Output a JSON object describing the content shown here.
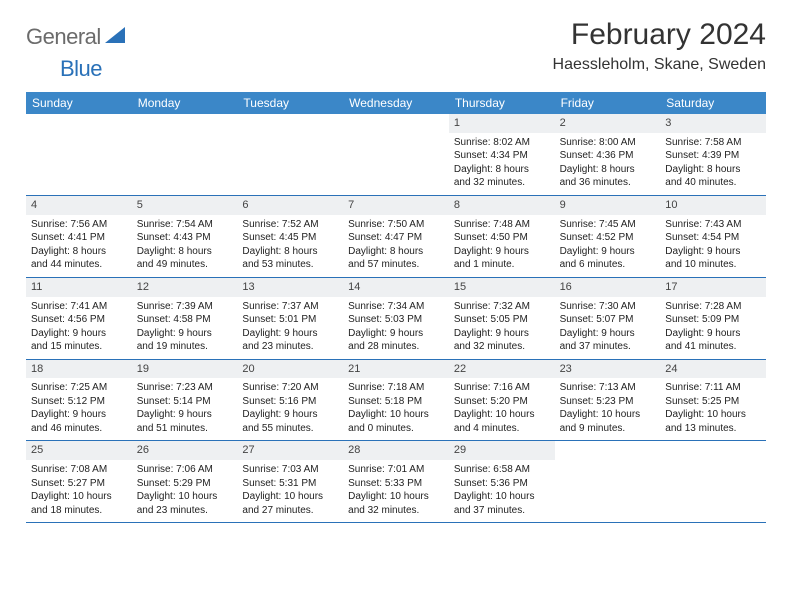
{
  "logo": {
    "general": "General",
    "blue": "Blue"
  },
  "title": "February 2024",
  "location": "Haessleholm, Skane, Sweden",
  "colors": {
    "header_bg": "#3b87c8",
    "accent": "#2a71b8",
    "daynum_bg": "#eef0f2",
    "logo_gray": "#6b6b6b",
    "text": "#222222"
  },
  "day_names": [
    "Sunday",
    "Monday",
    "Tuesday",
    "Wednesday",
    "Thursday",
    "Friday",
    "Saturday"
  ],
  "weeks": [
    [
      null,
      null,
      null,
      null,
      {
        "n": "1",
        "sunrise": "Sunrise: 8:02 AM",
        "sunset": "Sunset: 4:34 PM",
        "day1": "Daylight: 8 hours",
        "day2": "and 32 minutes."
      },
      {
        "n": "2",
        "sunrise": "Sunrise: 8:00 AM",
        "sunset": "Sunset: 4:36 PM",
        "day1": "Daylight: 8 hours",
        "day2": "and 36 minutes."
      },
      {
        "n": "3",
        "sunrise": "Sunrise: 7:58 AM",
        "sunset": "Sunset: 4:39 PM",
        "day1": "Daylight: 8 hours",
        "day2": "and 40 minutes."
      }
    ],
    [
      {
        "n": "4",
        "sunrise": "Sunrise: 7:56 AM",
        "sunset": "Sunset: 4:41 PM",
        "day1": "Daylight: 8 hours",
        "day2": "and 44 minutes."
      },
      {
        "n": "5",
        "sunrise": "Sunrise: 7:54 AM",
        "sunset": "Sunset: 4:43 PM",
        "day1": "Daylight: 8 hours",
        "day2": "and 49 minutes."
      },
      {
        "n": "6",
        "sunrise": "Sunrise: 7:52 AM",
        "sunset": "Sunset: 4:45 PM",
        "day1": "Daylight: 8 hours",
        "day2": "and 53 minutes."
      },
      {
        "n": "7",
        "sunrise": "Sunrise: 7:50 AM",
        "sunset": "Sunset: 4:47 PM",
        "day1": "Daylight: 8 hours",
        "day2": "and 57 minutes."
      },
      {
        "n": "8",
        "sunrise": "Sunrise: 7:48 AM",
        "sunset": "Sunset: 4:50 PM",
        "day1": "Daylight: 9 hours",
        "day2": "and 1 minute."
      },
      {
        "n": "9",
        "sunrise": "Sunrise: 7:45 AM",
        "sunset": "Sunset: 4:52 PM",
        "day1": "Daylight: 9 hours",
        "day2": "and 6 minutes."
      },
      {
        "n": "10",
        "sunrise": "Sunrise: 7:43 AM",
        "sunset": "Sunset: 4:54 PM",
        "day1": "Daylight: 9 hours",
        "day2": "and 10 minutes."
      }
    ],
    [
      {
        "n": "11",
        "sunrise": "Sunrise: 7:41 AM",
        "sunset": "Sunset: 4:56 PM",
        "day1": "Daylight: 9 hours",
        "day2": "and 15 minutes."
      },
      {
        "n": "12",
        "sunrise": "Sunrise: 7:39 AM",
        "sunset": "Sunset: 4:58 PM",
        "day1": "Daylight: 9 hours",
        "day2": "and 19 minutes."
      },
      {
        "n": "13",
        "sunrise": "Sunrise: 7:37 AM",
        "sunset": "Sunset: 5:01 PM",
        "day1": "Daylight: 9 hours",
        "day2": "and 23 minutes."
      },
      {
        "n": "14",
        "sunrise": "Sunrise: 7:34 AM",
        "sunset": "Sunset: 5:03 PM",
        "day1": "Daylight: 9 hours",
        "day2": "and 28 minutes."
      },
      {
        "n": "15",
        "sunrise": "Sunrise: 7:32 AM",
        "sunset": "Sunset: 5:05 PM",
        "day1": "Daylight: 9 hours",
        "day2": "and 32 minutes."
      },
      {
        "n": "16",
        "sunrise": "Sunrise: 7:30 AM",
        "sunset": "Sunset: 5:07 PM",
        "day1": "Daylight: 9 hours",
        "day2": "and 37 minutes."
      },
      {
        "n": "17",
        "sunrise": "Sunrise: 7:28 AM",
        "sunset": "Sunset: 5:09 PM",
        "day1": "Daylight: 9 hours",
        "day2": "and 41 minutes."
      }
    ],
    [
      {
        "n": "18",
        "sunrise": "Sunrise: 7:25 AM",
        "sunset": "Sunset: 5:12 PM",
        "day1": "Daylight: 9 hours",
        "day2": "and 46 minutes."
      },
      {
        "n": "19",
        "sunrise": "Sunrise: 7:23 AM",
        "sunset": "Sunset: 5:14 PM",
        "day1": "Daylight: 9 hours",
        "day2": "and 51 minutes."
      },
      {
        "n": "20",
        "sunrise": "Sunrise: 7:20 AM",
        "sunset": "Sunset: 5:16 PM",
        "day1": "Daylight: 9 hours",
        "day2": "and 55 minutes."
      },
      {
        "n": "21",
        "sunrise": "Sunrise: 7:18 AM",
        "sunset": "Sunset: 5:18 PM",
        "day1": "Daylight: 10 hours",
        "day2": "and 0 minutes."
      },
      {
        "n": "22",
        "sunrise": "Sunrise: 7:16 AM",
        "sunset": "Sunset: 5:20 PM",
        "day1": "Daylight: 10 hours",
        "day2": "and 4 minutes."
      },
      {
        "n": "23",
        "sunrise": "Sunrise: 7:13 AM",
        "sunset": "Sunset: 5:23 PM",
        "day1": "Daylight: 10 hours",
        "day2": "and 9 minutes."
      },
      {
        "n": "24",
        "sunrise": "Sunrise: 7:11 AM",
        "sunset": "Sunset: 5:25 PM",
        "day1": "Daylight: 10 hours",
        "day2": "and 13 minutes."
      }
    ],
    [
      {
        "n": "25",
        "sunrise": "Sunrise: 7:08 AM",
        "sunset": "Sunset: 5:27 PM",
        "day1": "Daylight: 10 hours",
        "day2": "and 18 minutes."
      },
      {
        "n": "26",
        "sunrise": "Sunrise: 7:06 AM",
        "sunset": "Sunset: 5:29 PM",
        "day1": "Daylight: 10 hours",
        "day2": "and 23 minutes."
      },
      {
        "n": "27",
        "sunrise": "Sunrise: 7:03 AM",
        "sunset": "Sunset: 5:31 PM",
        "day1": "Daylight: 10 hours",
        "day2": "and 27 minutes."
      },
      {
        "n": "28",
        "sunrise": "Sunrise: 7:01 AM",
        "sunset": "Sunset: 5:33 PM",
        "day1": "Daylight: 10 hours",
        "day2": "and 32 minutes."
      },
      {
        "n": "29",
        "sunrise": "Sunrise: 6:58 AM",
        "sunset": "Sunset: 5:36 PM",
        "day1": "Daylight: 10 hours",
        "day2": "and 37 minutes."
      },
      null,
      null
    ]
  ]
}
